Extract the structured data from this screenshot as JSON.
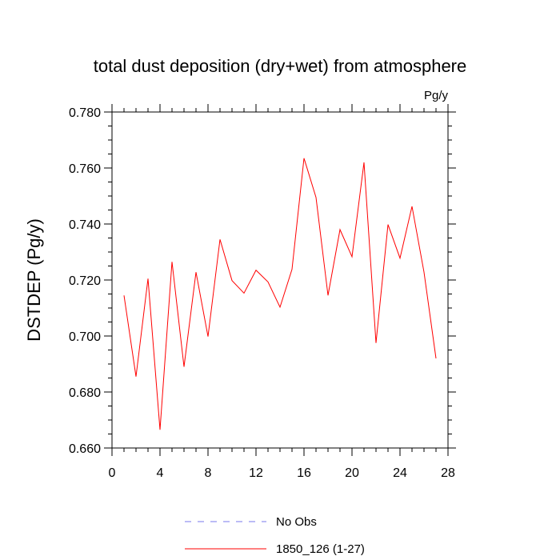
{
  "chart_data": {
    "type": "line",
    "title": "total dust deposition (dry+wet) from atmosphere",
    "units": "Pg/y",
    "ylabel": "DSTDEP  (Pg/y)",
    "xlabel": "",
    "xlim": [
      0,
      28
    ],
    "ylim": [
      0.66,
      0.78
    ],
    "xticks": [
      0,
      4,
      8,
      12,
      16,
      20,
      24,
      28
    ],
    "xtick_labels": [
      "0",
      "4",
      "8",
      "12",
      "16",
      "20",
      "24",
      "28"
    ],
    "yticks": [
      0.66,
      0.68,
      0.7,
      0.72,
      0.74,
      0.76,
      0.78
    ],
    "ytick_labels": [
      "0.660",
      "0.680",
      "0.700",
      "0.720",
      "0.740",
      "0.760",
      "0.780"
    ],
    "grid": false,
    "legend_position": "bottom",
    "series": [
      {
        "name": "No Obs",
        "color": "#7777ee",
        "style": "dashed",
        "x": [],
        "values": []
      },
      {
        "name": "1850_126 (1-27)",
        "color": "#ff0000",
        "style": "solid",
        "x": [
          1,
          2,
          3,
          4,
          5,
          6,
          7,
          8,
          9,
          10,
          11,
          12,
          13,
          14,
          15,
          16,
          17,
          18,
          19,
          20,
          21,
          22,
          23,
          24,
          25,
          26,
          27
        ],
        "values": [
          0.7145,
          0.6855,
          0.7205,
          0.6665,
          0.7265,
          0.689,
          0.7228,
          0.6998,
          0.7345,
          0.7198,
          0.7153,
          0.7235,
          0.7193,
          0.7103,
          0.7238,
          0.7635,
          0.7495,
          0.7145,
          0.738,
          0.7283,
          0.762,
          0.6975,
          0.7398,
          0.7278,
          0.7463,
          0.7228,
          0.692
        ]
      }
    ]
  }
}
